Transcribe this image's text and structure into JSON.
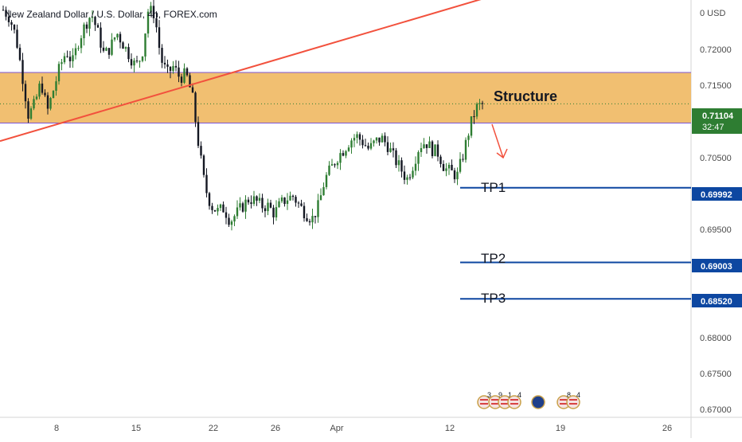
{
  "header": {
    "title": "New Zealand Dollar / U.S. Dollar, 4h, FOREX.com"
  },
  "price_axis": {
    "currency_label": "0 USD",
    "ticks": [
      "0.72000",
      "0.71500",
      "0.70500",
      "0.69500",
      "0.68000",
      "0.67500",
      "0.67000"
    ]
  },
  "time_axis": {
    "ticks": [
      "8",
      "15",
      "22",
      "26",
      "Apr",
      "12",
      "19",
      "26"
    ]
  },
  "annotations": {
    "structure_label": "Structure",
    "tp1_label": "TP1",
    "tp2_label": "TP2",
    "tp3_label": "TP3"
  },
  "price_tags": {
    "current_price": "0.71104",
    "countdown": "32:47",
    "tp1": "0.69992",
    "tp2": "0.69003",
    "tp3": "0.68520"
  },
  "events": [
    {
      "icon": "us-flag-icon",
      "count": "3"
    },
    {
      "icon": "us-flag-icon",
      "count": "9"
    },
    {
      "icon": "us-flag-icon",
      "count": "1"
    },
    {
      "icon": "us-flag-icon",
      "count": "4"
    },
    {
      "icon": "nz-flag-icon",
      "count": ""
    },
    {
      "icon": "us-flag-icon",
      "count": "8"
    },
    {
      "icon": "us-flag-icon",
      "count": "4"
    }
  ],
  "colors": {
    "bull": "#2e7d32",
    "bear": "#131722",
    "structure_zone": "#f0b862",
    "structure_border": "#7b55d6",
    "trendline": "#f2513d",
    "tp_line": "#0d47a1",
    "price_tag": "#2e7d32"
  },
  "chart_data": {
    "type": "candlestick",
    "title": "New Zealand Dollar / U.S. Dollar, 4h, FOREX.com",
    "ylim": [
      0.6695,
      0.7248
    ],
    "x_tick_labels": [
      "8",
      "15",
      "22",
      "26",
      "Apr",
      "12",
      "19",
      "26"
    ],
    "y_tick_labels": [
      "0.72000",
      "0.71500",
      "0.70500",
      "0.69500",
      "0.68000",
      "0.67500",
      "0.67000"
    ],
    "structure_zone": {
      "label": "Structure",
      "low": 0.7085,
      "high": 0.7152
    },
    "take_profit_levels": [
      {
        "name": "TP1",
        "value": 0.69992
      },
      {
        "name": "TP2",
        "value": 0.69003
      },
      {
        "name": "TP3",
        "value": 0.6852
      }
    ],
    "last_price": 0.71104,
    "trendline": {
      "start_price": 0.7061,
      "end_price": 0.7295
    },
    "close_path": [
      0.7235,
      0.7225,
      0.72,
      0.715,
      0.7095,
      0.711,
      0.714,
      0.71,
      0.713,
      0.716,
      0.718,
      0.7165,
      0.7195,
      0.7215,
      0.723,
      0.7205,
      0.7175,
      0.7185,
      0.7205,
      0.719,
      0.7175,
      0.716,
      0.7175,
      0.7235,
      0.723,
      0.717,
      0.715,
      0.716,
      0.7145,
      0.715,
      0.712,
      0.7055,
      0.7,
      0.6975,
      0.6968,
      0.6972,
      0.6955,
      0.6965,
      0.6975,
      0.6985,
      0.6982,
      0.6975,
      0.6975,
      0.6965,
      0.6978,
      0.6985,
      0.6988,
      0.6975,
      0.6965,
      0.6958,
      0.6975,
      0.701,
      0.7025,
      0.704,
      0.705,
      0.7062,
      0.7068,
      0.706,
      0.705,
      0.706,
      0.7065,
      0.7055,
      0.7038,
      0.7025,
      0.701,
      0.703,
      0.7055,
      0.706,
      0.705,
      0.7045,
      0.7025,
      0.702,
      0.7015,
      0.7045,
      0.708,
      0.7105,
      0.711
    ]
  }
}
